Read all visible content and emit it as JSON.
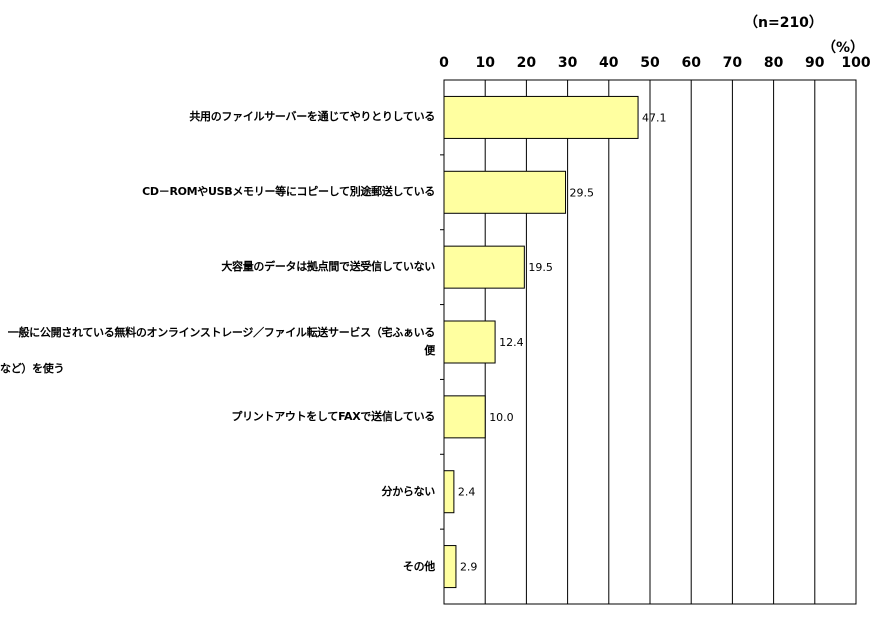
{
  "sample_note": "（n=210）",
  "unit_note": "（%）",
  "chart_data": {
    "type": "bar",
    "orientation": "horizontal",
    "categories": [
      "共用のファイルサーバーを通じてやりとりしている",
      "CD－ROMやUSBメモリー等にコピーして別途郵送している",
      "大容量のデータは拠点間で送受信していない",
      "一般に公開されている無料のオンラインストレージ／ファイル転送サービス（宅ふぁいる便など）を使う",
      "プリントアウトをしてFAXで送信している",
      "分からない",
      "その他"
    ],
    "category_lines": [
      [
        "共用のファイルサーバーを通じてやりとりしている"
      ],
      [
        "CD－ROMやUSBメモリー等にコピーして別途郵送している"
      ],
      [
        "大容量のデータは拠点間で送受信していない"
      ],
      [
        "一般に公開されている無料のオンラインストレージ／ファイル転送サービス（宅ふぁいる便",
        "など）を使う"
      ],
      [
        "プリントアウトをしてFAXで送信している"
      ],
      [
        "分からない"
      ],
      [
        "その他"
      ]
    ],
    "values": [
      47.1,
      29.5,
      19.5,
      12.4,
      10.0,
      2.4,
      2.9
    ],
    "value_labels": [
      "47.1",
      "29.5",
      "19.5",
      "12.4",
      "10.0",
      "2.4",
      "2.9"
    ],
    "xlim": [
      0,
      100
    ],
    "xticks": [
      "0",
      "10",
      "20",
      "30",
      "40",
      "50",
      "60",
      "70",
      "80",
      "90",
      "100"
    ],
    "xtick_values": [
      0,
      10,
      20,
      30,
      40,
      50,
      60,
      70,
      80,
      90,
      100
    ],
    "axis_position": "top",
    "grid": true,
    "legend": false,
    "colors": {
      "bar_fill": "#ffffa0",
      "bar_stroke": "#000000",
      "grid": "#000000",
      "frame": "#000000"
    }
  }
}
